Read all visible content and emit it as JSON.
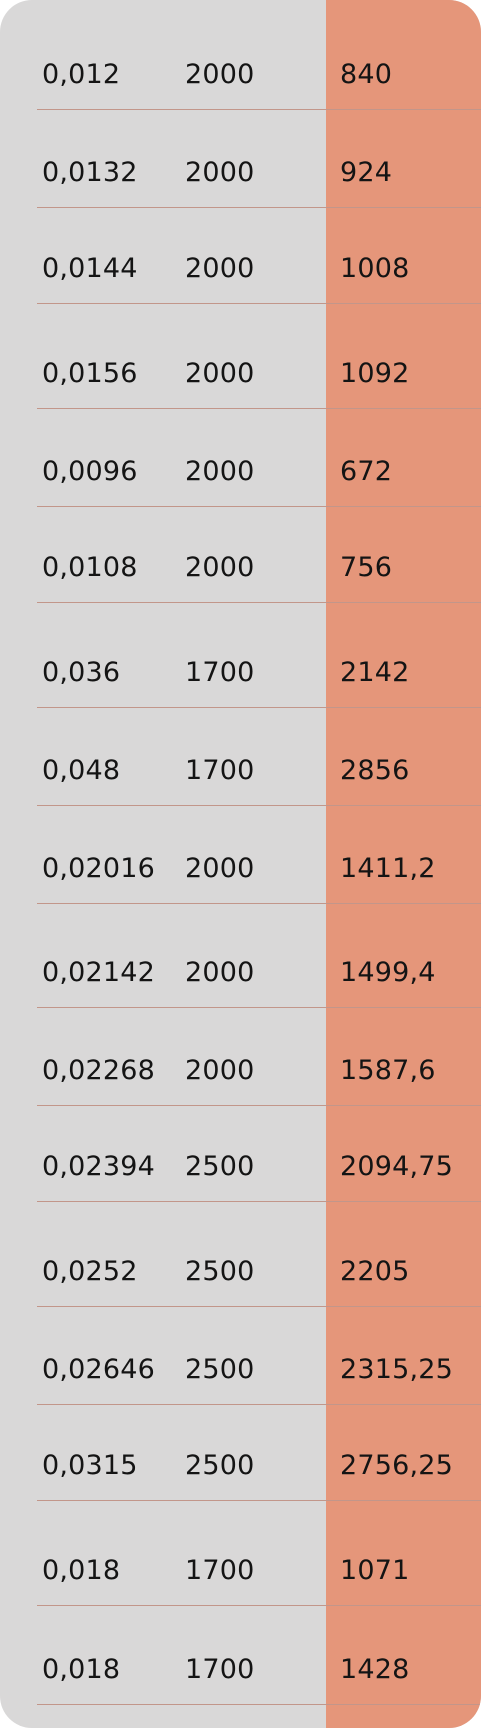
{
  "accent_color": "#e5967a",
  "background_color": "#d9d8d8",
  "rows": [
    {
      "c1": "0,012",
      "c2": "2000",
      "c3": "840"
    },
    {
      "c1": "0,0132",
      "c2": "2000",
      "c3": "924"
    },
    {
      "c1": "0,0144",
      "c2": "2000",
      "c3": "1008"
    },
    {
      "c1": "0,0156",
      "c2": "2000",
      "c3": "1092"
    },
    {
      "c1": "0,0096",
      "c2": "2000",
      "c3": "672"
    },
    {
      "c1": "0,0108",
      "c2": "2000",
      "c3": "756"
    },
    {
      "c1": "0,036",
      "c2": "1700",
      "c3": "2142"
    },
    {
      "c1": "0,048",
      "c2": "1700",
      "c3": "2856"
    },
    {
      "c1": "0,02016",
      "c2": "2000",
      "c3": "1411,2"
    },
    {
      "c1": "0,02142",
      "c2": "2000",
      "c3": "1499,4"
    },
    {
      "c1": "0,02268",
      "c2": "2000",
      "c3": "1587,6"
    },
    {
      "c1": "0,02394",
      "c2": "2500",
      "c3": "2094,75"
    },
    {
      "c1": "0,0252",
      "c2": "2500",
      "c3": "2205"
    },
    {
      "c1": "0,02646",
      "c2": "2500",
      "c3": "2315,25"
    },
    {
      "c1": "0,0315",
      "c2": "2500",
      "c3": "2756,25"
    },
    {
      "c1": "0,018",
      "c2": "1700",
      "c3": "1071"
    },
    {
      "c1": "0,018",
      "c2": "1700",
      "c3": "1428"
    }
  ]
}
